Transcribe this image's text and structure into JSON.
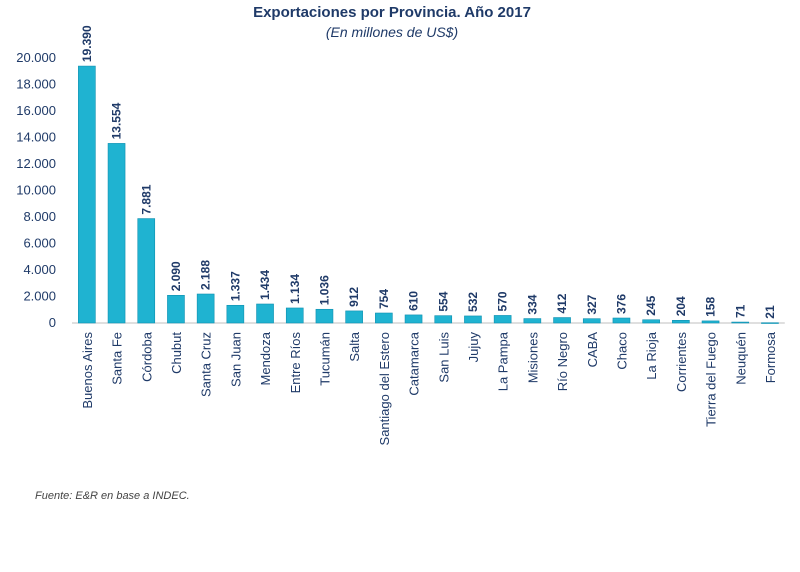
{
  "chart_data": {
    "type": "bar",
    "title": "Exportaciones por Provincia. Año 2017",
    "subtitle": "(En millones de US$)",
    "xlabel": "",
    "ylabel": "",
    "ylim": [
      0,
      20000
    ],
    "yticks": [
      0,
      2000,
      4000,
      6000,
      8000,
      10000,
      12000,
      14000,
      16000,
      18000,
      20000
    ],
    "ytick_labels": [
      "0",
      "2.000",
      "4.000",
      "6.000",
      "8.000",
      "10.000",
      "12.000",
      "14.000",
      "16.000",
      "18.000",
      "20.000"
    ],
    "grid": false,
    "categories": [
      "Buenos Aires",
      "Santa Fe",
      "Córdoba",
      "Chubut",
      "Santa Cruz",
      "San Juan",
      "Mendoza",
      "Entre Ríos",
      "Tucumán",
      "Salta",
      "Santiago del Estero",
      "Catamarca",
      "San Luis",
      "Jujuy",
      "La Pampa",
      "Misiones",
      "Río Negro",
      "CABA",
      "Chaco",
      "La Rioja",
      "Corrientes",
      "Tierra del Fuego",
      "Neuquén",
      "Formosa"
    ],
    "values": [
      19390,
      13554,
      7881,
      2090,
      2188,
      1337,
      1434,
      1134,
      1036,
      912,
      754,
      610,
      554,
      532,
      570,
      334,
      412,
      327,
      376,
      245,
      204,
      158,
      71,
      21
    ],
    "value_labels": [
      "19.390",
      "13.554",
      "7.881",
      "2.090",
      "2.188",
      "1.337",
      "1.434",
      "1.134",
      "1.036",
      "912",
      "754",
      "610",
      "554",
      "532",
      "570",
      "334",
      "412",
      "327",
      "376",
      "245",
      "204",
      "158",
      "71",
      "21"
    ],
    "bar_color": "#1fb3d1"
  },
  "source": "Fuente: E&R en base a INDEC."
}
